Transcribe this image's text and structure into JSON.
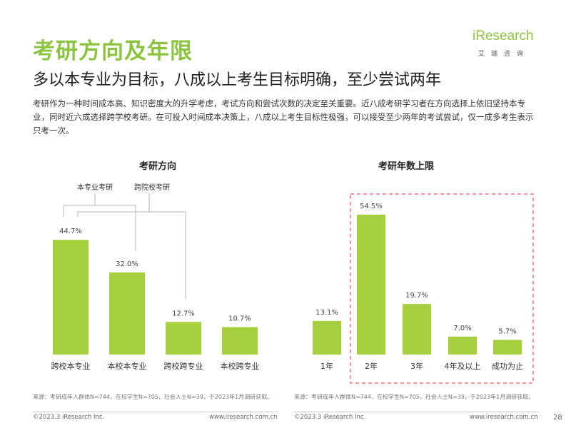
{
  "title": "考研方向及年限",
  "subtitle": "多以本专业为目标，八成以上考生目标明确，至少尝试两年",
  "description": "考研作为一种时间成本高、知识密度大的升学考虑，考试方向和尝试次数的决定至关重要。近八成考研学习者在方向选择上依旧坚持本专业，同时近六成选择跨学校考研。在可投入时间成本决策上，八成以上考生目标性极强，可以接受至少两年的考试尝试，仅一成多考生表示只考一次。",
  "logo": {
    "main": "iResearch",
    "sub": "艾瑞咨询"
  },
  "colors": {
    "bar": "#a5cf3c",
    "title_green": "#8cc43f",
    "highlight_border": "#e8545f"
  },
  "chart_data": [
    {
      "type": "bar",
      "title": "考研方向",
      "categories": [
        "跨校本专业",
        "本校本专业",
        "跨校跨专业",
        "本校跨专业"
      ],
      "values": [
        44.7,
        32.0,
        12.7,
        10.7
      ],
      "value_labels": [
        "44.7%",
        "32.0%",
        "12.7%",
        "10.7%"
      ],
      "unit": "%",
      "ylim": [
        0,
        60
      ],
      "grid": false,
      "annotations": [
        {
          "label": "本专业考研",
          "covers": [
            "跨校本专业",
            "本校本专业"
          ]
        },
        {
          "label": "跨院校考研",
          "covers": [
            "跨校本专业",
            "跨校跨专业"
          ]
        }
      ]
    },
    {
      "type": "bar",
      "title": "考研年数上限",
      "categories": [
        "1年",
        "2年",
        "3年",
        "4年及以上",
        "成功为止"
      ],
      "values": [
        13.1,
        54.5,
        19.7,
        7.0,
        5.7
      ],
      "value_labels": [
        "13.1%",
        "54.5%",
        "19.7%",
        "7.0%",
        "5.7%"
      ],
      "unit": "%",
      "ylim": [
        0,
        60
      ],
      "grid": false,
      "highlighted": [
        "2年",
        "3年",
        "4年及以上",
        "成功为止"
      ]
    }
  ],
  "sources": {
    "left": "来源：考研成年人群体N=744，在校学生N=705，社会人士N=39，于2023年1月调研获取。",
    "right": "来源：考研成年人群体N=744，在校学生N=705，社会人士N=39，于2023年1月调研获取。"
  },
  "footer": {
    "copyright_left": "©2023.3 iResearch Inc.",
    "url_left": "www.iresearch.com.cn",
    "copyright_right": "©2023.3 iResearch Inc.",
    "url_right": "www.iresearch.com.cn",
    "page_number": "28"
  }
}
